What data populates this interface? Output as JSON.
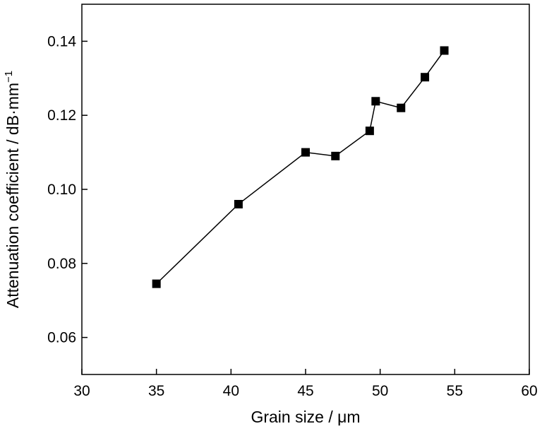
{
  "chart_data": {
    "type": "line",
    "title": "",
    "xlabel": "Grain size / μm",
    "ylabel_main": "Attenuation coefficient / dB·mm",
    "ylabel_exponent": "−1",
    "xlim": [
      30,
      60
    ],
    "ylim": [
      0.05,
      0.15
    ],
    "xticks": [
      30,
      35,
      40,
      45,
      50,
      55,
      60
    ],
    "xtick_labels": [
      "30",
      "35",
      "40",
      "45",
      "50",
      "55",
      "60"
    ],
    "yticks": [
      0.06,
      0.08,
      0.1,
      0.12,
      0.14
    ],
    "ytick_labels": [
      "0.06",
      "0.08",
      "0.10",
      "0.12",
      "0.14"
    ],
    "grid": false,
    "series": [
      {
        "marker": "square",
        "color": "#000000",
        "x": [
          35.0,
          40.5,
          45.0,
          47.0,
          49.3,
          49.7,
          51.4,
          53.0,
          54.3
        ],
        "y": [
          0.0745,
          0.096,
          0.11,
          0.109,
          0.1158,
          0.1238,
          0.122,
          0.1303,
          0.1375
        ]
      }
    ]
  }
}
